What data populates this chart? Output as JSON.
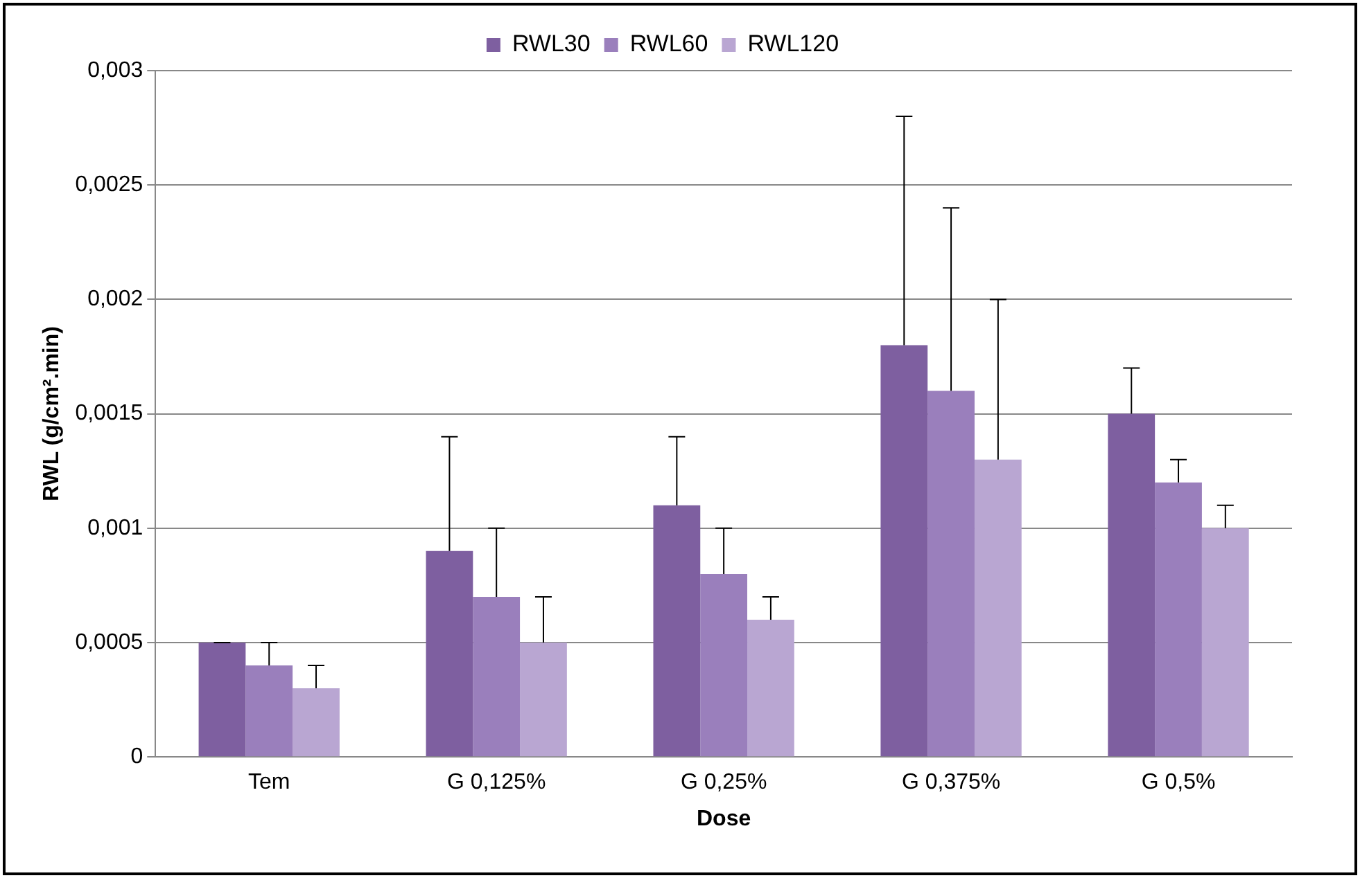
{
  "chart_data": {
    "type": "bar",
    "xlabel": "Dose",
    "ylabel": "RWL (g/cm².min)",
    "categories": [
      "Tem",
      "G 0,125%",
      "G 0,25%",
      "G 0,375%",
      "G 0,5%"
    ],
    "series": [
      {
        "name": "RWL30",
        "color": "#7e5fa0",
        "values": [
          0.0005,
          0.0009,
          0.0011,
          0.0018,
          0.0015
        ],
        "errors": [
          [
            0.0005,
            0.0005
          ],
          [
            0.0009,
            0.0014
          ],
          [
            0.0011,
            0.0014
          ],
          [
            0.0018,
            0.0028
          ],
          [
            0.0015,
            0.0017
          ]
        ]
      },
      {
        "name": "RWL60",
        "color": "#9a7fbc",
        "values": [
          0.0004,
          0.0007,
          0.0008,
          0.0016,
          0.0012
        ],
        "errors": [
          [
            0.0004,
            0.0005
          ],
          [
            0.0007,
            0.001
          ],
          [
            0.0008,
            0.001
          ],
          [
            0.0016,
            0.0024
          ],
          [
            0.0012,
            0.0013
          ]
        ]
      },
      {
        "name": "RWL120",
        "color": "#b9a6d2",
        "values": [
          0.0003,
          0.0005,
          0.0006,
          0.0013,
          0.001
        ],
        "errors": [
          [
            0.0003,
            0.0004
          ],
          [
            0.0005,
            0.0007
          ],
          [
            0.0006,
            0.0007
          ],
          [
            0.0013,
            0.002
          ],
          [
            0.001,
            0.0011
          ]
        ]
      }
    ],
    "ylim": [
      0,
      0.003
    ],
    "yticks": [
      {
        "value": 0,
        "label": "0"
      },
      {
        "value": 0.0005,
        "label": "0,0005"
      },
      {
        "value": 0.001,
        "label": "0,001"
      },
      {
        "value": 0.0015,
        "label": "0,0015"
      },
      {
        "value": 0.002,
        "label": "0,002"
      },
      {
        "value": 0.0025,
        "label": "0,0025"
      },
      {
        "value": 0.003,
        "label": "0,003"
      }
    ],
    "grid": "y",
    "legend": "top"
  }
}
